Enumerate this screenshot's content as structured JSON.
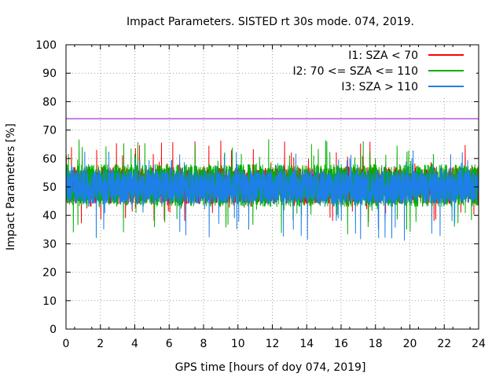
{
  "chart_data": {
    "type": "line",
    "title": "Impact Parameters. SISTED rt 30s mode. 074, 2019.",
    "xlabel": "GPS time [hours of doy 074, 2019]",
    "ylabel": "Impact Parameters [%]",
    "xlim": [
      0,
      24
    ],
    "ylim": [
      0,
      100
    ],
    "xticks": [
      0,
      2,
      4,
      6,
      8,
      10,
      12,
      14,
      16,
      18,
      20,
      22,
      24
    ],
    "yticks": [
      0,
      10,
      20,
      30,
      40,
      50,
      60,
      70,
      80,
      90,
      100
    ],
    "grid": true,
    "legend_position": "top-right",
    "reference_line": {
      "y": 74,
      "color": "#9400d3"
    },
    "series": [
      {
        "name": "I1: SZA < 70",
        "color": "#ff0000",
        "center": 50,
        "spread_low": 44,
        "spread_high": 57,
        "min": 37,
        "max": 67,
        "x_range": [
          0,
          24
        ]
      },
      {
        "name": "I2: 70 <= SZA <= 110",
        "color": "#00b000",
        "center": 50,
        "spread_low": 43,
        "spread_high": 58,
        "min": 33,
        "max": 67,
        "x_range": [
          0,
          24
        ]
      },
      {
        "name": "I3: SZA > 110",
        "color": "#1e7fe8",
        "center": 50,
        "spread_low": 44,
        "spread_high": 56,
        "min": 31,
        "max": 63,
        "x_range": [
          0,
          24
        ]
      }
    ]
  }
}
